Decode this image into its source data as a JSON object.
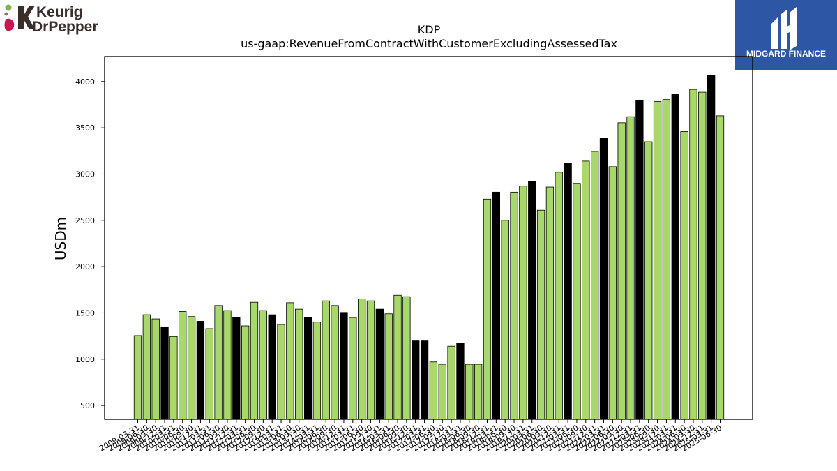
{
  "brand": {
    "left_logo_text_1": "Keurig",
    "left_logo_text_2": "DrPepper",
    "right_logo_text": "MIDGARD FINANCE",
    "right_logo_bg": "#2d56a5"
  },
  "colors": {
    "bar_green": "#a8d86a",
    "bar_black": "#000000"
  },
  "chart_data": {
    "type": "bar",
    "title": "KDP",
    "subtitle": "us-gaap:RevenueFromContractWithCustomerExcludingAssessedTax",
    "ylabel": "USDm",
    "xlabel": "",
    "ylim": [
      350,
      4270
    ],
    "yticks": [
      500,
      1000,
      1500,
      2000,
      2500,
      3000,
      3500,
      4000
    ],
    "grid": false,
    "categories": [
      "2009-03-31",
      "2009-06-30",
      "2009-09-30",
      "2009-12-31",
      "2010-03-31",
      "2010-06-30",
      "2010-09-30",
      "2010-12-31",
      "2011-03-31",
      "2011-06-30",
      "2011-09-30",
      "2011-12-31",
      "2012-03-31",
      "2012-06-30",
      "2012-09-30",
      "2012-12-31",
      "2013-03-31",
      "2013-06-30",
      "2013-09-30",
      "2013-12-31",
      "2014-03-31",
      "2014-06-30",
      "2014-09-30",
      "2014-12-31",
      "2015-03-31",
      "2015-06-30",
      "2015-09-30",
      "2015-12-31",
      "2016-03-31",
      "2016-06-30",
      "2016-09-30",
      "2016-12-31",
      "2017-03-31",
      "2017-06-30",
      "2017-09-30",
      "2017-12-31",
      "2018-03-31",
      "2018-06-30",
      "2018-09-30",
      "2018-12-31",
      "2019-03-31",
      "2019-06-30",
      "2019-09-30",
      "2019-12-31",
      "2020-03-31",
      "2020-06-30",
      "2020-09-30",
      "2020-12-31",
      "2021-03-31",
      "2021-06-30",
      "2021-09-30",
      "2021-12-31",
      "2022-03-31",
      "2022-06-30",
      "2022-09-30",
      "2022-12-31",
      "2023-03-31",
      "2023-06-30",
      "2023-09-30",
      "2023-12-31",
      "2024-03-31",
      "2024-06-30",
      "2024-09-30",
      "2024-12-31",
      "2025-03-31",
      "2025-06-30"
    ],
    "values": [
      1255,
      1480,
      1435,
      1350,
      1245,
      1515,
      1460,
      1410,
      1330,
      1580,
      1525,
      1455,
      1360,
      1615,
      1525,
      1480,
      1375,
      1610,
      1540,
      1455,
      1400,
      1630,
      1580,
      1505,
      1450,
      1650,
      1630,
      1540,
      1490,
      1690,
      1675,
      1205,
      1205,
      970,
      945,
      1140,
      1170,
      945,
      945,
      2730,
      2805,
      2500,
      2805,
      2870,
      2925,
      2610,
      2860,
      3020,
      3115,
      2900,
      3140,
      3245,
      3385,
      3080,
      3555,
      3620,
      3800,
      3350,
      3785,
      3805,
      3865,
      3460,
      3915,
      3885,
      4070,
      3630
    ],
    "highlight_pattern": [
      "g",
      "g",
      "g",
      "b",
      "g",
      "g",
      "g",
      "b",
      "g",
      "g",
      "g",
      "b",
      "g",
      "g",
      "g",
      "b",
      "g",
      "g",
      "g",
      "b",
      "g",
      "g",
      "g",
      "b",
      "g",
      "g",
      "g",
      "b",
      "g",
      "g",
      "g",
      "b",
      "b",
      "g",
      "g",
      "g",
      "b",
      "g",
      "g",
      "g",
      "b",
      "g",
      "g",
      "g",
      "b",
      "g",
      "g",
      "g",
      "b",
      "g",
      "g",
      "g",
      "b",
      "g",
      "g",
      "g",
      "b",
      "g",
      "g",
      "g",
      "b",
      "g",
      "g",
      "g",
      "b",
      "g"
    ]
  }
}
